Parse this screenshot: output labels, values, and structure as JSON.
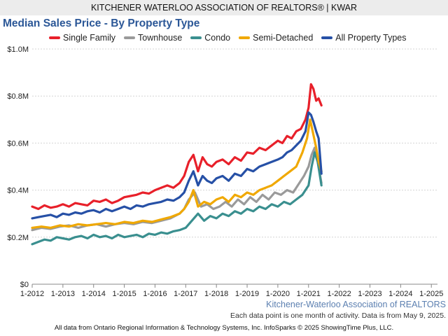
{
  "header": {
    "text": "KITCHENER WATERLOO ASSOCIATION OF REALTORS® | KWAR"
  },
  "footer": {
    "source": "Kitchener-Waterloo Association of REALTORS",
    "note": "Each data point is one month of activity. Data is from May 9, 2025.",
    "copyright": "All data from Ontario Regional Information & Technology Systems, Inc. InfoSparks © 2025 ShowingTime Plus, LLC."
  },
  "chart_data": {
    "type": "line",
    "title": "Median Sales Price - By Property Type",
    "xlabel": "",
    "ylabel": "",
    "xlim": [
      2012.0,
      2025.2
    ],
    "ylim": [
      0,
      1000000
    ],
    "x_ticks": [
      "1-2012",
      "1-2013",
      "1-2014",
      "1-2015",
      "1-2016",
      "1-2017",
      "1-2018",
      "1-2019",
      "1-2020",
      "1-2021",
      "1-2022",
      "1-2023",
      "1-2024",
      "1-2025"
    ],
    "y_ticks": [
      "$0",
      "$0.2M",
      "$0.4M",
      "$0.6M",
      "$0.8M",
      "$1.0M"
    ],
    "grid": true,
    "legend": "top",
    "series": [
      {
        "name": "Single Family",
        "color": "#e8202a",
        "x": [
          2012.0,
          2012.2,
          2012.4,
          2012.6,
          2012.8,
          2013.0,
          2013.2,
          2013.4,
          2013.6,
          2013.8,
          2014.0,
          2014.2,
          2014.4,
          2014.6,
          2014.8,
          2015.0,
          2015.2,
          2015.4,
          2015.6,
          2015.8,
          2016.0,
          2016.2,
          2016.4,
          2016.6,
          2016.8,
          2016.95,
          2017.1,
          2017.25,
          2017.4,
          2017.55,
          2017.7,
          2017.85,
          2018.0,
          2018.2,
          2018.4,
          2018.6,
          2018.8,
          2019.0,
          2019.2,
          2019.4,
          2019.6,
          2019.8,
          2020.0,
          2020.15,
          2020.3,
          2020.45,
          2020.6,
          2020.75,
          2020.9,
          2021.0,
          2021.08,
          2021.16,
          2021.25,
          2021.33,
          2021.42
        ],
        "y": [
          330000,
          320000,
          335000,
          325000,
          330000,
          340000,
          330000,
          345000,
          340000,
          335000,
          355000,
          350000,
          360000,
          345000,
          355000,
          370000,
          375000,
          380000,
          390000,
          385000,
          400000,
          410000,
          420000,
          410000,
          430000,
          460000,
          520000,
          550000,
          480000,
          540000,
          510000,
          500000,
          520000,
          530000,
          510000,
          540000,
          525000,
          560000,
          555000,
          580000,
          570000,
          590000,
          610000,
          600000,
          630000,
          620000,
          650000,
          660000,
          700000,
          750000,
          850000,
          830000,
          780000,
          790000,
          760000
        ]
      },
      {
        "name": "Townhouse",
        "color": "#9a9a9a",
        "x": [
          2012.0,
          2012.3,
          2012.6,
          2012.9,
          2013.2,
          2013.5,
          2013.8,
          2014.1,
          2014.4,
          2014.7,
          2015.0,
          2015.3,
          2015.6,
          2015.9,
          2016.2,
          2016.5,
          2016.8,
          2016.95,
          2017.1,
          2017.3,
          2017.5,
          2017.7,
          2017.9,
          2018.1,
          2018.3,
          2018.5,
          2018.7,
          2018.9,
          2019.1,
          2019.3,
          2019.5,
          2019.7,
          2019.9,
          2020.1,
          2020.3,
          2020.5,
          2020.7,
          2020.85,
          2021.0,
          2021.1,
          2021.2,
          2021.3,
          2021.42
        ],
        "y": [
          230000,
          240000,
          235000,
          245000,
          250000,
          240000,
          250000,
          255000,
          245000,
          255000,
          260000,
          255000,
          265000,
          260000,
          270000,
          280000,
          300000,
          320000,
          360000,
          390000,
          330000,
          340000,
          320000,
          330000,
          350000,
          330000,
          360000,
          340000,
          370000,
          350000,
          380000,
          360000,
          390000,
          380000,
          400000,
          390000,
          430000,
          460000,
          500000,
          550000,
          580000,
          520000,
          430000
        ]
      },
      {
        "name": "Condo",
        "color": "#3a8f8f",
        "x": [
          2012.0,
          2012.2,
          2012.4,
          2012.6,
          2012.8,
          2013.0,
          2013.2,
          2013.4,
          2013.6,
          2013.8,
          2014.0,
          2014.2,
          2014.4,
          2014.6,
          2014.8,
          2015.0,
          2015.2,
          2015.4,
          2015.6,
          2015.8,
          2016.0,
          2016.2,
          2016.4,
          2016.6,
          2016.8,
          2017.0,
          2017.2,
          2017.4,
          2017.6,
          2017.8,
          2018.0,
          2018.2,
          2018.4,
          2018.6,
          2018.8,
          2019.0,
          2019.2,
          2019.4,
          2019.6,
          2019.8,
          2020.0,
          2020.2,
          2020.4,
          2020.6,
          2020.8,
          2021.0,
          2021.1,
          2021.2,
          2021.3,
          2021.42
        ],
        "y": [
          170000,
          180000,
          190000,
          185000,
          200000,
          195000,
          190000,
          200000,
          205000,
          195000,
          210000,
          200000,
          205000,
          195000,
          210000,
          200000,
          205000,
          210000,
          200000,
          215000,
          210000,
          220000,
          215000,
          225000,
          230000,
          240000,
          270000,
          300000,
          270000,
          290000,
          280000,
          300000,
          290000,
          310000,
          300000,
          320000,
          310000,
          330000,
          320000,
          340000,
          330000,
          350000,
          340000,
          360000,
          380000,
          420000,
          500000,
          560000,
          520000,
          420000
        ]
      },
      {
        "name": "Semi-Detached",
        "color": "#f0a800",
        "x": [
          2012.0,
          2012.3,
          2012.6,
          2012.9,
          2013.2,
          2013.5,
          2013.8,
          2014.1,
          2014.4,
          2014.7,
          2015.0,
          2015.3,
          2015.6,
          2015.9,
          2016.2,
          2016.5,
          2016.8,
          2016.95,
          2017.1,
          2017.25,
          2017.4,
          2017.6,
          2017.8,
          2018.0,
          2018.2,
          2018.4,
          2018.6,
          2018.8,
          2019.0,
          2019.2,
          2019.4,
          2019.6,
          2019.8,
          2020.0,
          2020.2,
          2020.4,
          2020.6,
          2020.8,
          2020.95,
          2021.05,
          2021.15,
          2021.25,
          2021.33,
          2021.42
        ],
        "y": [
          240000,
          245000,
          240000,
          250000,
          245000,
          255000,
          250000,
          255000,
          260000,
          255000,
          265000,
          260000,
          270000,
          265000,
          275000,
          285000,
          300000,
          320000,
          350000,
          400000,
          330000,
          350000,
          340000,
          360000,
          370000,
          350000,
          380000,
          370000,
          390000,
          380000,
          400000,
          410000,
          420000,
          440000,
          460000,
          480000,
          500000,
          560000,
          620000,
          700000,
          640000,
          580000,
          520000,
          480000
        ]
      },
      {
        "name": "All Property Types",
        "color": "#2650a6",
        "x": [
          2012.0,
          2012.2,
          2012.4,
          2012.6,
          2012.8,
          2013.0,
          2013.2,
          2013.4,
          2013.6,
          2013.8,
          2014.0,
          2014.2,
          2014.4,
          2014.6,
          2014.8,
          2015.0,
          2015.2,
          2015.4,
          2015.6,
          2015.8,
          2016.0,
          2016.2,
          2016.4,
          2016.6,
          2016.8,
          2016.95,
          2017.1,
          2017.25,
          2017.4,
          2017.55,
          2017.7,
          2017.85,
          2018.0,
          2018.2,
          2018.4,
          2018.6,
          2018.8,
          2019.0,
          2019.2,
          2019.4,
          2019.6,
          2019.8,
          2020.0,
          2020.15,
          2020.3,
          2020.45,
          2020.6,
          2020.75,
          2020.9,
          2021.0,
          2021.08,
          2021.16,
          2021.25,
          2021.33,
          2021.42
        ],
        "y": [
          280000,
          285000,
          290000,
          295000,
          285000,
          300000,
          295000,
          305000,
          300000,
          310000,
          315000,
          305000,
          320000,
          310000,
          320000,
          330000,
          320000,
          335000,
          330000,
          340000,
          345000,
          350000,
          360000,
          355000,
          370000,
          390000,
          440000,
          480000,
          420000,
          460000,
          440000,
          430000,
          450000,
          460000,
          440000,
          470000,
          460000,
          490000,
          480000,
          500000,
          510000,
          520000,
          530000,
          540000,
          560000,
          570000,
          590000,
          610000,
          650000,
          730000,
          720000,
          690000,
          650000,
          620000,
          470000
        ]
      }
    ]
  }
}
